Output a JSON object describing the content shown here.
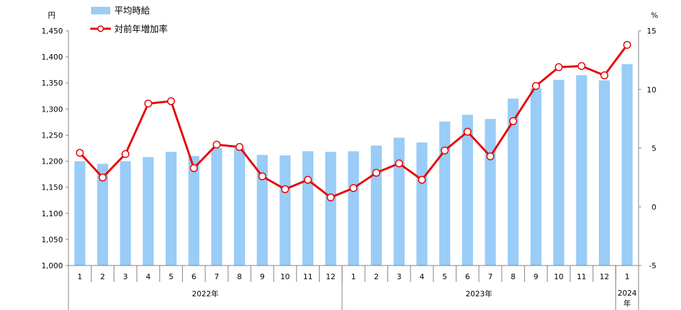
{
  "chart_data": {
    "type": "bar",
    "left_unit": "円",
    "right_unit": "%",
    "categories": [
      "1",
      "2",
      "3",
      "4",
      "5",
      "6",
      "7",
      "8",
      "9",
      "10",
      "11",
      "12",
      "1",
      "2",
      "3",
      "4",
      "5",
      "6",
      "7",
      "8",
      "9",
      "10",
      "11",
      "12",
      "1"
    ],
    "groups": [
      {
        "label": "2022年",
        "count": 12
      },
      {
        "label": "2023年",
        "count": 12
      },
      {
        "label": "2024\n年",
        "count": 1
      }
    ],
    "series": [
      {
        "name": "平均時給",
        "kind": "bar",
        "axis": "left",
        "color": "#99ccf7",
        "values": [
          1200,
          1195,
          1200,
          1208,
          1218,
          1210,
          1225,
          1225,
          1212,
          1211,
          1219,
          1218,
          1219,
          1230,
          1245,
          1236,
          1276,
          1289,
          1281,
          1320,
          1340,
          1356,
          1365,
          1355,
          1386
        ]
      },
      {
        "name": "対前年増加率",
        "kind": "line",
        "axis": "right",
        "color": "#e60000",
        "values": [
          4.6,
          2.5,
          4.5,
          8.8,
          9.0,
          3.3,
          5.3,
          5.1,
          2.6,
          1.5,
          2.3,
          0.8,
          1.6,
          2.9,
          3.7,
          2.3,
          4.8,
          6.4,
          4.3,
          7.3,
          10.3,
          11.9,
          12.0,
          11.2,
          13.8
        ]
      }
    ],
    "y_left": {
      "min": 1000,
      "max": 1450,
      "step": 50,
      "tick_labels": [
        "1,000",
        "1,050",
        "1,100",
        "1,150",
        "1,200",
        "1,250",
        "1,300",
        "1,350",
        "1,400",
        "1,450"
      ]
    },
    "y_right": {
      "min": -5,
      "max": 15,
      "step": 5,
      "tick_labels": [
        "-5",
        "0",
        "5",
        "10",
        "15"
      ]
    },
    "grid": false,
    "legend_position": "top-left"
  }
}
